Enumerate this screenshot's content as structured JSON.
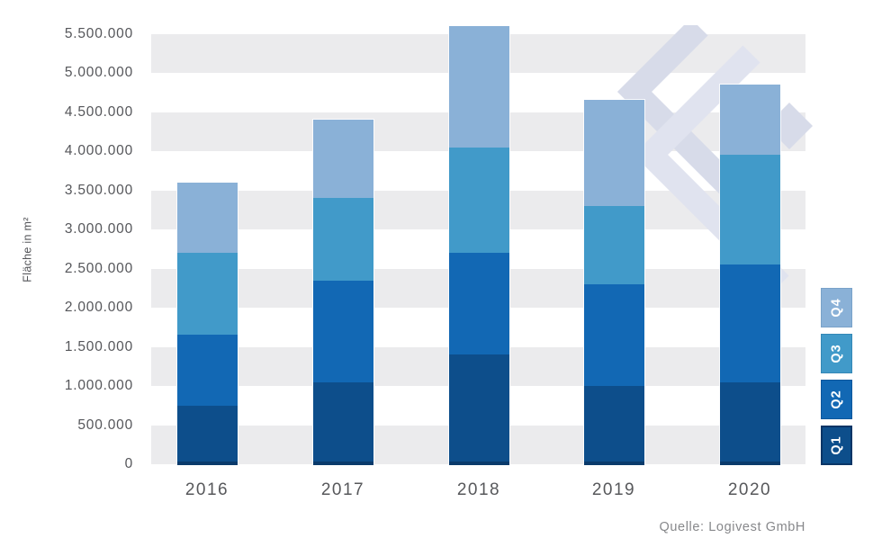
{
  "chart_data": {
    "type": "bar",
    "stacked": true,
    "title": "",
    "xlabel": "",
    "ylabel": "Fläche in m²",
    "categories": [
      "2016",
      "2017",
      "2018",
      "2019",
      "2020"
    ],
    "series": [
      {
        "name": "Q1",
        "color": "#0d4e8b",
        "values": [
          750000,
          1050000,
          1400000,
          1000000,
          1050000
        ]
      },
      {
        "name": "Q2",
        "color": "#1268b4",
        "values": [
          900000,
          1300000,
          1300000,
          1300000,
          1500000
        ]
      },
      {
        "name": "Q3",
        "color": "#419ac9",
        "values": [
          1050000,
          1050000,
          1350000,
          1000000,
          1400000
        ]
      },
      {
        "name": "Q4",
        "color": "#8ab1d7",
        "values": [
          900000,
          1000000,
          1550000,
          1350000,
          900000
        ]
      }
    ],
    "totals": [
      3600000,
      4400000,
      5600000,
      4650000,
      4850000
    ],
    "ylim": [
      0,
      5500000
    ],
    "ytick_step": 500000,
    "ytick_labels": [
      "0",
      "500.000",
      "1.000.000",
      "1.500.000",
      "2.000.000",
      "2.500.000",
      "3.000.000",
      "3.500.000",
      "4.000.000",
      "4.500.000",
      "5.000.000",
      "5.500.000"
    ],
    "grid": "alternating horizontal gray bands",
    "band_color": "#ebebed",
    "bar_base_color": "#0a3a6b",
    "legend": {
      "position": "right",
      "items_top_to_bottom": [
        {
          "label": "Q4",
          "color": "#8ab1d7",
          "border": "#79a2c9"
        },
        {
          "label": "Q3",
          "color": "#419ac9",
          "border": "#3488b6"
        },
        {
          "label": "Q2",
          "color": "#1268b4",
          "border": "#0d579c"
        },
        {
          "label": "Q1",
          "color": "#0d4e8b",
          "border": "#0a3566"
        }
      ]
    },
    "source": "Quelle: Logivest GmbH",
    "watermark": "logivest-logo"
  }
}
